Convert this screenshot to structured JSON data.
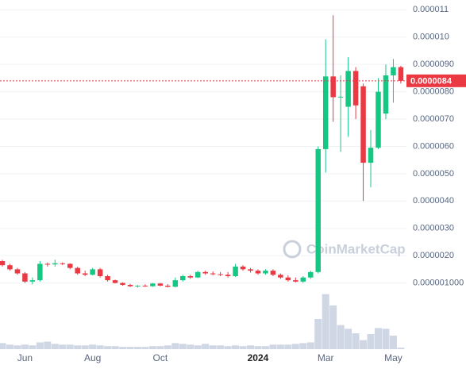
{
  "watermark": "CoinMarketCap",
  "chart_data": {
    "type": "candlestick",
    "up_color": "#16c784",
    "down_color": "#ea3943",
    "volume_color": "#cfd6e4",
    "grid": true,
    "ylim": [
      0,
      1.13e-05
    ],
    "yticks": [
      {
        "value": 1e-06,
        "label": "0.000001000"
      },
      {
        "value": 2e-06,
        "label": "0.0000020"
      },
      {
        "value": 3e-06,
        "label": "0.0000030"
      },
      {
        "value": 4e-06,
        "label": "0.0000040"
      },
      {
        "value": 5e-06,
        "label": "0.0000050"
      },
      {
        "value": 6e-06,
        "label": "0.0000060"
      },
      {
        "value": 7e-06,
        "label": "0.0000070"
      },
      {
        "value": 8e-06,
        "label": "0.0000080"
      },
      {
        "value": 9e-06,
        "label": "0.0000090"
      },
      {
        "value": 1e-05,
        "label": "0.000010"
      },
      {
        "value": 1.1e-05,
        "label": "0.000011"
      }
    ],
    "current_price": {
      "value": 8.4e-06,
      "label": "0.0000084"
    },
    "categories": [
      null,
      null,
      null,
      "Jun",
      null,
      null,
      null,
      null,
      null,
      null,
      null,
      null,
      "Aug",
      null,
      null,
      null,
      null,
      null,
      null,
      null,
      null,
      "Oct",
      null,
      null,
      null,
      null,
      null,
      null,
      null,
      null,
      null,
      null,
      null,
      null,
      "2024",
      null,
      null,
      null,
      null,
      null,
      null,
      null,
      null,
      "Mar",
      null,
      null,
      null,
      null,
      null,
      null,
      null,
      null,
      "May",
      null
    ],
    "open": [
      1.8e-06,
      1.65e-06,
      1.5e-06,
      1.35e-06,
      1.05e-06,
      1.1e-06,
      1.7e-06,
      1.68e-06,
      1.72e-06,
      1.7e-06,
      1.55e-06,
      1.35e-06,
      1.3e-06,
      1.5e-06,
      1.25e-06,
      1.1e-06,
      1e-06,
      9.3e-07,
      8.8e-07,
      9e-07,
      8.8e-07,
      9.8e-07,
      9e-07,
      8.6e-07,
      1.1e-06,
      1.25e-06,
      1.2e-06,
      1.4e-06,
      1.35e-06,
      1.32e-06,
      1.3e-06,
      1.25e-06,
      1.6e-06,
      1.5e-06,
      1.45e-06,
      1.35e-06,
      1.45e-06,
      1.3e-06,
      1.2e-06,
      1.1e-06,
      1.05e-06,
      1.2e-06,
      1.4e-06,
      5.9e-06,
      8.56e-06,
      7.8e-06,
      7.45e-06,
      8.76e-06,
      8.2e-06,
      5.4e-06,
      5.95e-06,
      7.2e-06,
      8.6e-06,
      8.9e-06
    ],
    "high": [
      1.85e-06,
      1.7e-06,
      1.55e-06,
      1.4e-06,
      1.2e-06,
      1.8e-06,
      1.75e-06,
      1.85e-06,
      1.75e-06,
      1.72e-06,
      1.6e-06,
      1.45e-06,
      1.55e-06,
      1.55e-06,
      1.3e-06,
      1.12e-06,
      1.02e-06,
      9.7e-07,
      9.2e-07,
      9.5e-07,
      1e-06,
      1e-06,
      9.6e-07,
      1.2e-06,
      1.3e-06,
      1.3e-06,
      1.45e-06,
      1.45e-06,
      1.42e-06,
      1.4e-06,
      1.4e-06,
      1.7e-06,
      1.65e-06,
      1.55e-06,
      1.5e-06,
      1.5e-06,
      1.5e-06,
      1.35e-06,
      1.28e-06,
      1.2e-06,
      1.25e-06,
      1.45e-06,
      6e-06,
      9.92e-06,
      1.08e-05,
      8.6e-06,
      9.26e-06,
      8.9e-06,
      8.3e-06,
      6.6e-06,
      8.5e-06,
      9e-06,
      9.2e-06,
      8.95e-06
    ],
    "low": [
      1.6e-06,
      1.45e-06,
      1.3e-06,
      1e-06,
      9.5e-07,
      1.05e-06,
      1.6e-06,
      1.6e-06,
      1.65e-06,
      1.5e-06,
      1.3e-06,
      1.25e-06,
      1.28e-06,
      1.2e-06,
      1.05e-06,
      9.8e-07,
      9e-07,
      8.5e-07,
      8.3e-07,
      8.6e-07,
      8.6e-07,
      8.8e-07,
      8.4e-07,
      8.4e-07,
      1.05e-06,
      1.15e-06,
      1.18e-06,
      1.3e-06,
      1.28e-06,
      1.25e-06,
      1.2e-06,
      1.22e-06,
      1.45e-06,
      1.38e-06,
      1.3e-06,
      1.3e-06,
      1.25e-06,
      1.15e-06,
      1.05e-06,
      1.02e-06,
      1e-06,
      1.15e-06,
      1.35e-06,
      5.04e-06,
      6.9e-06,
      5.8e-06,
      6.35e-06,
      7e-06,
      4e-06,
      4.5e-06,
      5.9e-06,
      7e-06,
      7.6e-06,
      8.3e-06
    ],
    "close": [
      1.65e-06,
      1.5e-06,
      1.35e-06,
      1.05e-06,
      1.1e-06,
      1.7e-06,
      1.68e-06,
      1.72e-06,
      1.7e-06,
      1.55e-06,
      1.35e-06,
      1.3e-06,
      1.5e-06,
      1.25e-06,
      1.1e-06,
      1e-06,
      9.3e-07,
      8.8e-07,
      9e-07,
      8.8e-07,
      9.8e-07,
      9e-07,
      8.6e-07,
      1.1e-06,
      1.25e-06,
      1.2e-06,
      1.4e-06,
      1.35e-06,
      1.32e-06,
      1.3e-06,
      1.25e-06,
      1.6e-06,
      1.5e-06,
      1.45e-06,
      1.35e-06,
      1.45e-06,
      1.3e-06,
      1.2e-06,
      1.1e-06,
      1.05e-06,
      1.2e-06,
      1.4e-06,
      5.9e-06,
      8.56e-06,
      7.8e-06,
      7.82e-06,
      8.76e-06,
      7.5e-06,
      5.4e-06,
      5.95e-06,
      8e-06,
      8.6e-06,
      8.9e-06,
      8.4e-06
    ],
    "volume_lim": [
      0,
      100
    ],
    "volume": [
      8,
      6,
      5,
      6,
      5,
      9,
      10,
      7,
      6,
      6,
      5,
      5,
      6,
      5,
      4,
      4,
      3,
      3,
      3,
      3,
      4,
      4,
      5,
      8,
      7,
      6,
      5,
      7,
      5,
      5,
      4,
      5,
      4,
      5,
      4,
      4,
      6,
      6,
      6,
      7,
      8,
      9,
      40,
      73,
      58,
      32,
      27,
      21,
      12,
      20,
      28,
      27,
      18,
      2
    ]
  }
}
